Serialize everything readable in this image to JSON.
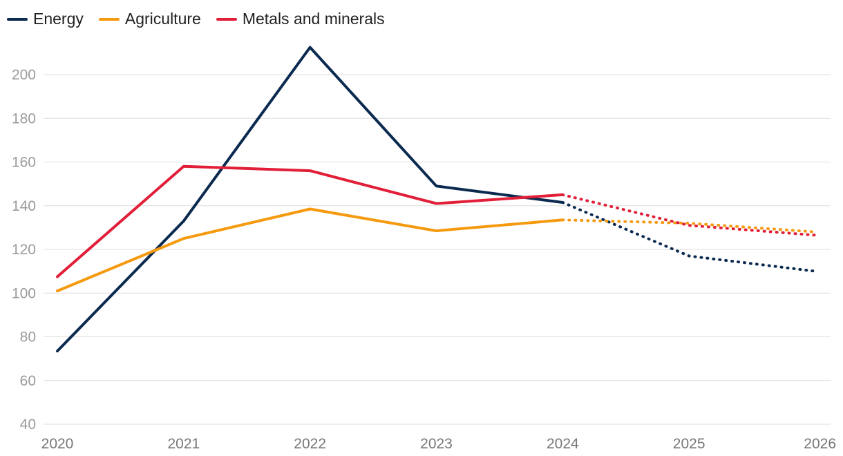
{
  "chart_data": {
    "type": "line",
    "title": "",
    "xlabel": "",
    "ylabel": "",
    "x": [
      2020,
      2021,
      2022,
      2023,
      2024,
      2025,
      2026
    ],
    "x_tick_labels": [
      "2020",
      "2021",
      "2022",
      "2023",
      "2024",
      "2025",
      "2026"
    ],
    "y_tick_labels": [
      "40",
      "60",
      "80",
      "100",
      "120",
      "140",
      "160",
      "180",
      "200"
    ],
    "y_ticks": [
      40,
      60,
      80,
      100,
      120,
      140,
      160,
      180,
      200
    ],
    "ylim": [
      40,
      215
    ],
    "grid": true,
    "legend_position": "top-left",
    "forecast_start": 2024,
    "forecast_note": "Dotted segments from 2024 onward are projections",
    "series": [
      {
        "name": "Energy",
        "color": "#0b2a4f",
        "values": [
          73.5,
          133,
          212.5,
          149,
          141.5,
          117,
          110
        ]
      },
      {
        "name": "Agriculture",
        "color": "#f59a0f",
        "values": [
          101,
          125,
          138.5,
          128.5,
          133.5,
          132,
          128
        ]
      },
      {
        "name": "Metals and minerals",
        "color": "#e11f38",
        "values": [
          107.5,
          158,
          156,
          141,
          145,
          131,
          126.5
        ]
      }
    ]
  }
}
